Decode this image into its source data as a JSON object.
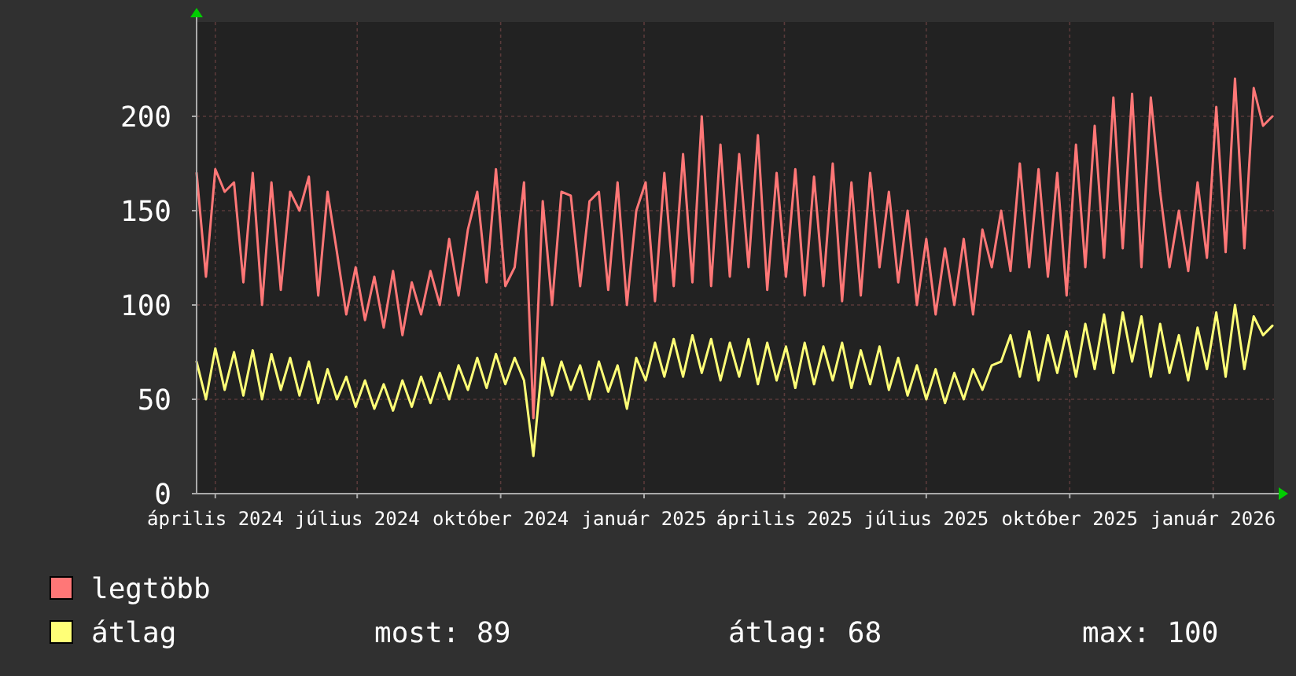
{
  "chart_data": {
    "type": "line",
    "x": [
      "2024-03-20",
      "2024-03-26",
      "2024-04-01",
      "2024-04-07",
      "2024-04-13",
      "2024-04-19",
      "2024-04-25",
      "2024-05-01",
      "2024-05-07",
      "2024-05-13",
      "2024-05-19",
      "2024-05-25",
      "2024-05-31",
      "2024-06-06",
      "2024-06-12",
      "2024-06-18",
      "2024-06-24",
      "2024-06-30",
      "2024-07-06",
      "2024-07-12",
      "2024-07-18",
      "2024-07-24",
      "2024-07-30",
      "2024-08-05",
      "2024-08-11",
      "2024-08-17",
      "2024-08-23",
      "2024-08-29",
      "2024-09-04",
      "2024-09-10",
      "2024-09-16",
      "2024-09-22",
      "2024-09-28",
      "2024-10-04",
      "2024-10-10",
      "2024-10-16",
      "2024-10-22",
      "2024-10-28",
      "2024-11-03",
      "2024-11-09",
      "2024-11-15",
      "2024-11-21",
      "2024-11-27",
      "2024-12-03",
      "2024-12-09",
      "2024-12-15",
      "2024-12-21",
      "2024-12-27",
      "2025-01-02",
      "2025-01-08",
      "2025-01-14",
      "2025-01-20",
      "2025-01-26",
      "2025-02-01",
      "2025-02-07",
      "2025-02-13",
      "2025-02-19",
      "2025-02-25",
      "2025-03-03",
      "2025-03-09",
      "2025-03-15",
      "2025-03-21",
      "2025-03-27",
      "2025-04-02",
      "2025-04-08",
      "2025-04-14",
      "2025-04-20",
      "2025-04-26",
      "2025-05-02",
      "2025-05-08",
      "2025-05-14",
      "2025-05-20",
      "2025-05-26",
      "2025-06-01",
      "2025-06-07",
      "2025-06-13",
      "2025-06-19",
      "2025-06-25",
      "2025-07-01",
      "2025-07-07",
      "2025-07-13",
      "2025-07-19",
      "2025-07-25",
      "2025-07-31",
      "2025-08-06",
      "2025-08-12",
      "2025-08-18",
      "2025-08-24",
      "2025-08-30",
      "2025-09-05",
      "2025-09-11",
      "2025-09-17",
      "2025-09-23",
      "2025-09-29",
      "2025-10-05",
      "2025-10-11",
      "2025-10-17",
      "2025-10-23",
      "2025-10-29",
      "2025-11-04",
      "2025-11-10",
      "2025-11-16",
      "2025-11-22",
      "2025-11-28",
      "2025-12-04",
      "2025-12-10",
      "2025-12-16",
      "2025-12-22",
      "2025-12-28",
      "2026-01-03",
      "2026-01-09",
      "2026-01-15",
      "2026-01-21",
      "2026-01-27",
      "2026-02-02",
      "2026-02-08"
    ],
    "series": [
      {
        "name": "legtöbb",
        "color": "#ff7777",
        "values": [
          170,
          115,
          172,
          160,
          165,
          112,
          170,
          100,
          165,
          108,
          160,
          150,
          168,
          105,
          160,
          128,
          95,
          120,
          92,
          115,
          88,
          118,
          84,
          112,
          95,
          118,
          100,
          135,
          105,
          140,
          160,
          112,
          172,
          110,
          120,
          165,
          40,
          155,
          100,
          160,
          158,
          110,
          155,
          160,
          108,
          165,
          100,
          150,
          165,
          102,
          170,
          110,
          180,
          112,
          200,
          110,
          185,
          115,
          180,
          120,
          190,
          108,
          170,
          115,
          172,
          105,
          168,
          110,
          175,
          102,
          165,
          105,
          170,
          120,
          160,
          112,
          150,
          100,
          135,
          95,
          130,
          100,
          135,
          95,
          140,
          120,
          150,
          118,
          175,
          120,
          172,
          115,
          170,
          105,
          185,
          120,
          195,
          125,
          210,
          130,
          212,
          120,
          210,
          160,
          120,
          150,
          118,
          165,
          125,
          205,
          128,
          220,
          130,
          215,
          195,
          200
        ]
      },
      {
        "name": "átlag",
        "color": "#ffff77",
        "values": [
          70,
          50,
          77,
          55,
          75,
          52,
          76,
          50,
          74,
          55,
          72,
          52,
          70,
          48,
          66,
          50,
          62,
          46,
          60,
          45,
          58,
          44,
          60,
          46,
          62,
          48,
          64,
          50,
          68,
          55,
          72,
          56,
          74,
          58,
          72,
          60,
          20,
          72,
          52,
          70,
          55,
          68,
          50,
          70,
          54,
          68,
          45,
          72,
          60,
          80,
          62,
          82,
          62,
          84,
          64,
          82,
          60,
          80,
          62,
          82,
          58,
          80,
          60,
          78,
          56,
          80,
          58,
          78,
          60,
          80,
          56,
          76,
          58,
          78,
          55,
          72,
          52,
          68,
          50,
          66,
          48,
          64,
          50,
          66,
          55,
          68,
          70,
          84,
          62,
          86,
          60,
          84,
          64,
          86,
          62,
          90,
          66,
          95,
          64,
          96,
          70,
          94,
          62,
          90,
          64,
          84,
          60,
          88,
          66,
          96,
          62,
          100,
          66,
          94,
          84,
          89
        ]
      }
    ],
    "xlim": [
      "2024-03-20",
      "2026-02-09"
    ],
    "xticks": [
      {
        "value": "2024-04-01",
        "label": "április 2024"
      },
      {
        "value": "2024-07-01",
        "label": "július 2024"
      },
      {
        "value": "2024-10-01",
        "label": "október 2024"
      },
      {
        "value": "2025-01-01",
        "label": "január 2025"
      },
      {
        "value": "2025-04-01",
        "label": "április 2025"
      },
      {
        "value": "2025-07-01",
        "label": "július 2025"
      },
      {
        "value": "2025-10-01",
        "label": "október 2025"
      },
      {
        "value": "2026-01-01",
        "label": "január 2026"
      }
    ],
    "ylim": [
      0,
      250
    ],
    "yticks": [
      0,
      50,
      100,
      150,
      200
    ],
    "grid": true,
    "legend": "bottom",
    "annotations": [
      "most: 89",
      "átlag: 68",
      "max: 100"
    ]
  }
}
